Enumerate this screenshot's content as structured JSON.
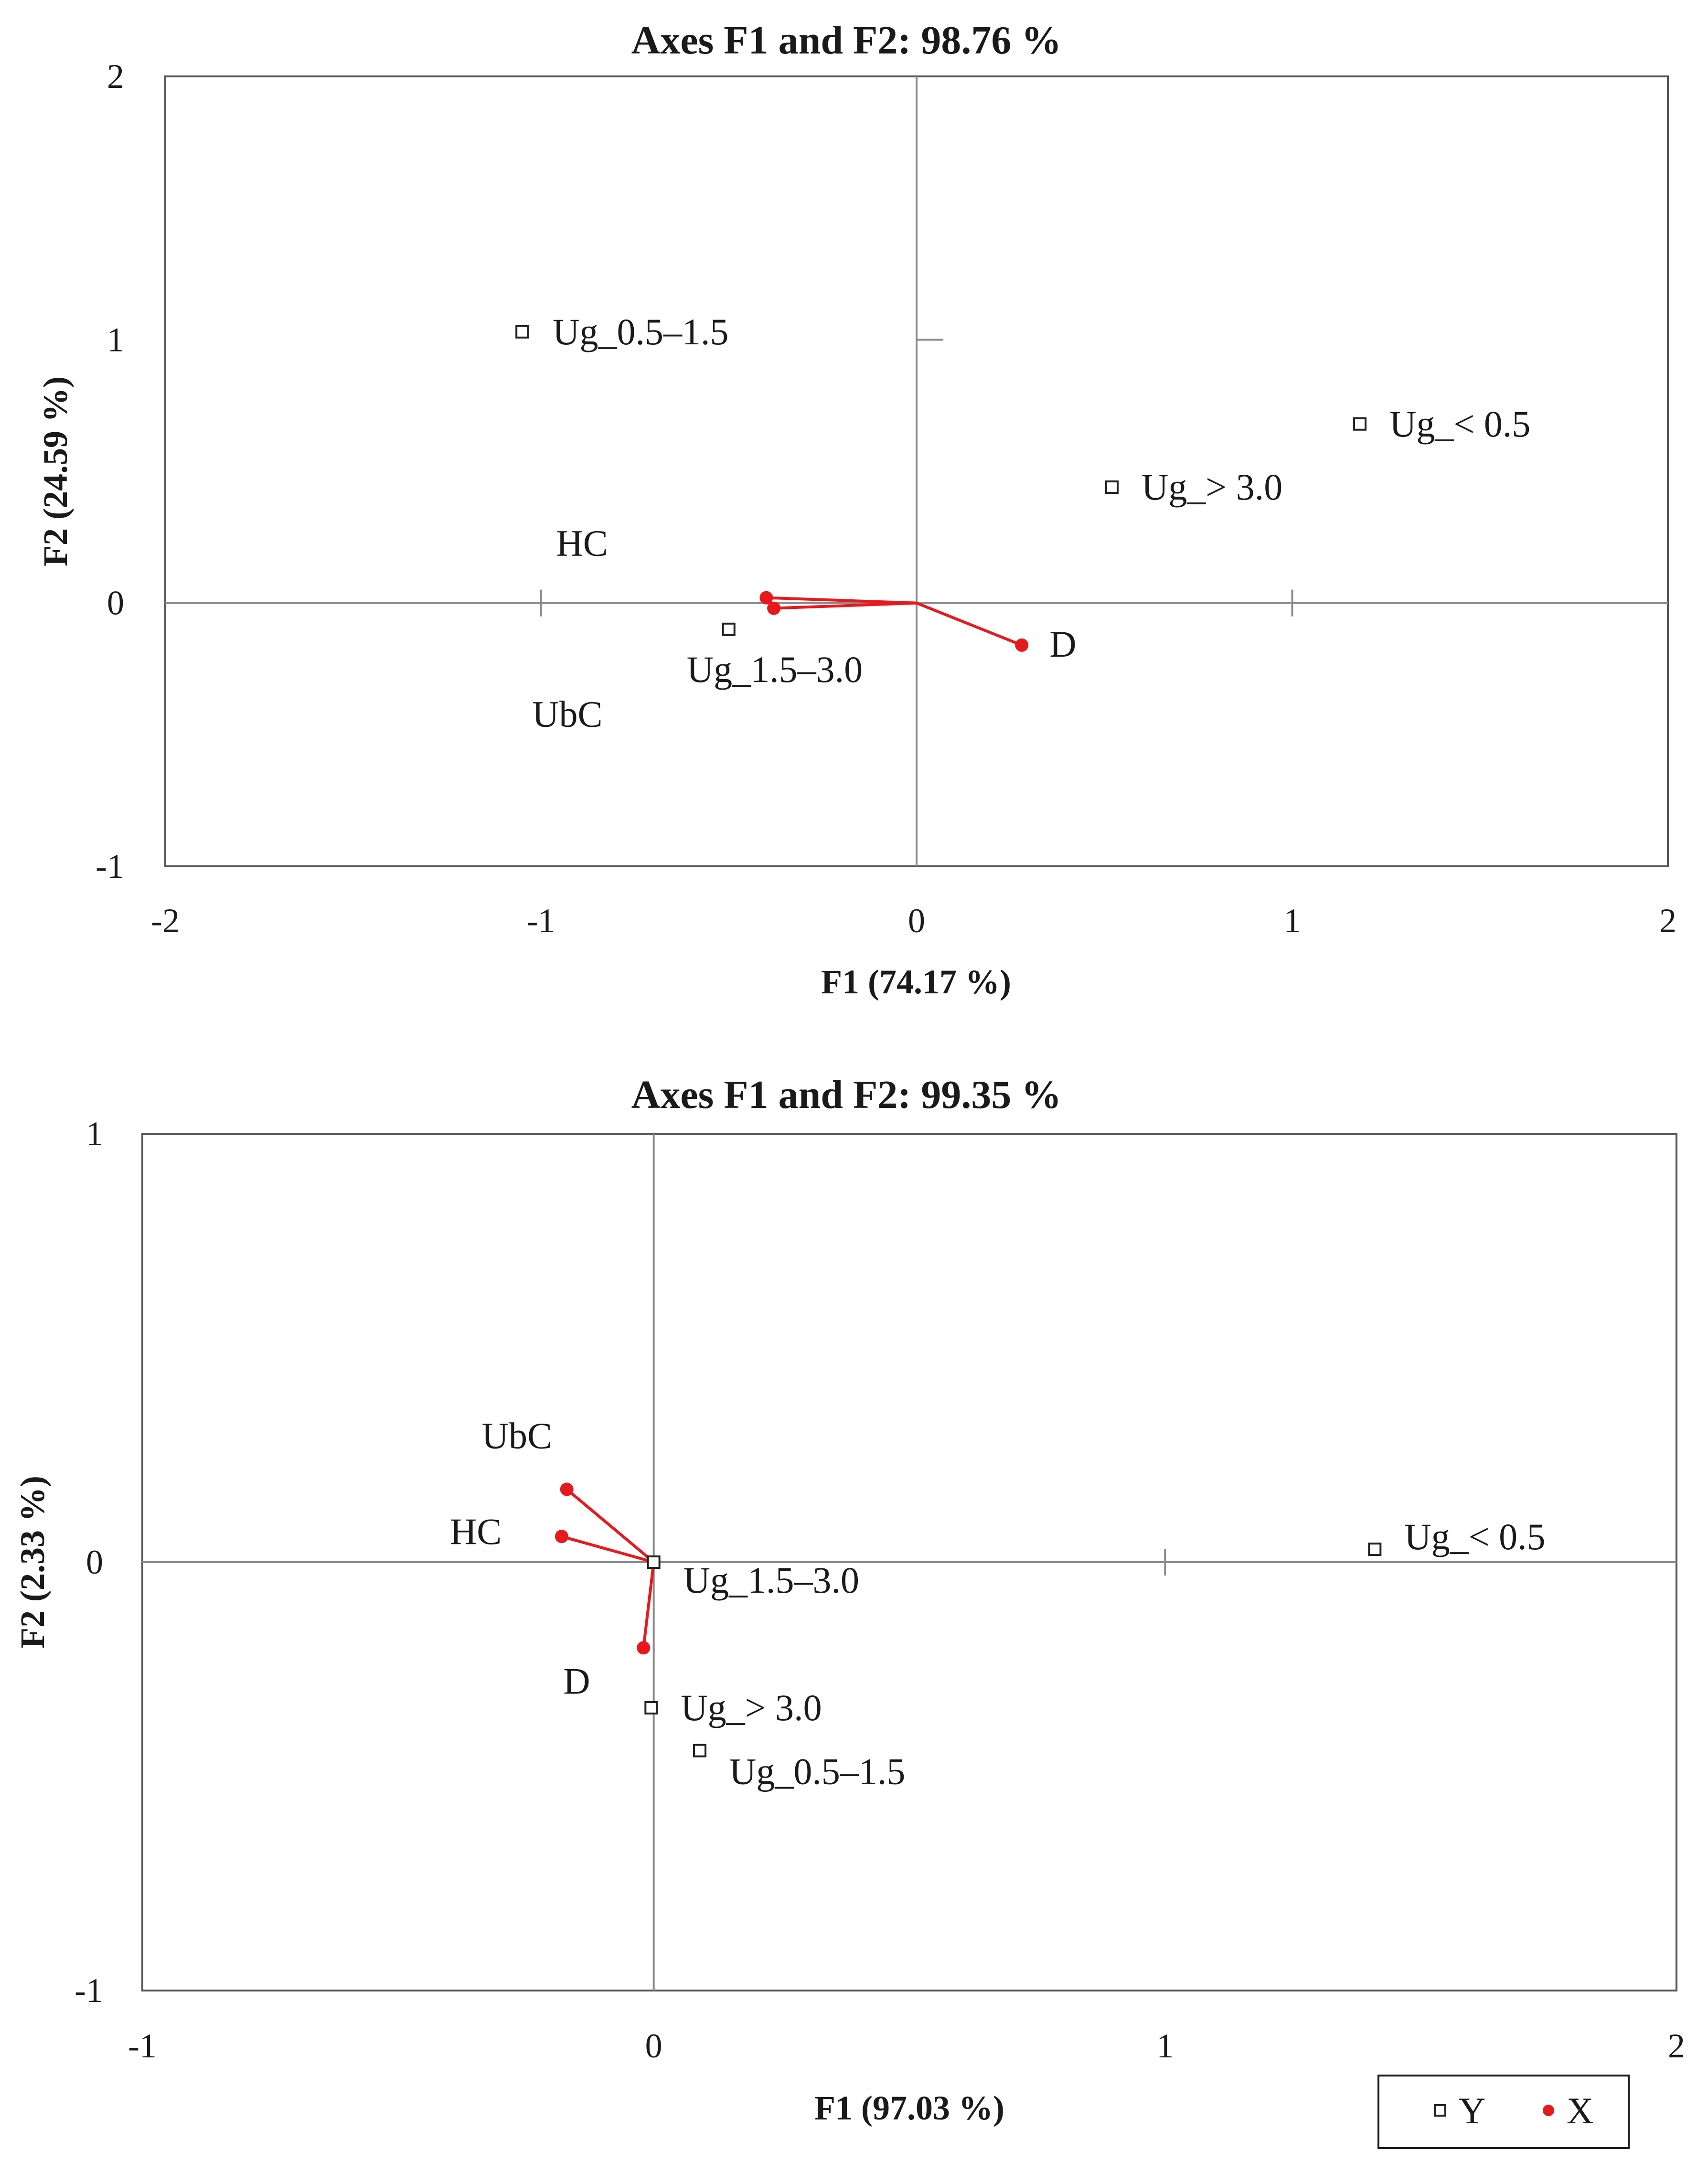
{
  "chart_data": [
    {
      "type": "scatter",
      "title": "Axes F1 and F2: 98.76 %",
      "xlabel": "F1 (74.17 %)",
      "ylabel": "F2 (24.59 %)",
      "xlim": [
        -2,
        2
      ],
      "ylim": [
        -1,
        2
      ],
      "xticks": [
        "-2",
        "-1",
        "0",
        "1",
        "2"
      ],
      "yticks": [
        "-1",
        "0",
        "1",
        "2"
      ],
      "grid": false,
      "series": [
        {
          "name": "Y",
          "marker": "open-square",
          "color": "#222222",
          "points": [
            {
              "label": "Ug_0.5–1.5",
              "x": -1.05,
              "y": 1.03
            },
            {
              "label": "Ug_< 0.5",
              "x": 1.18,
              "y": 0.68
            },
            {
              "label": "Ug_> 3.0",
              "x": 0.52,
              "y": 0.44
            },
            {
              "label": "Ug_1.5–3.0",
              "x": -0.5,
              "y": -0.1
            }
          ]
        },
        {
          "name": "X",
          "marker": "filled-circle-vector",
          "color": "#e8191d",
          "points": [
            {
              "label": "HC",
              "x": -0.4,
              "y": 0.02
            },
            {
              "label": "UbC",
              "x": -0.38,
              "y": -0.02
            },
            {
              "label": "D",
              "x": 0.28,
              "y": -0.16
            }
          ]
        }
      ]
    },
    {
      "type": "scatter",
      "title": "Axes F1 and F2: 99.35 %",
      "xlabel": "F1 (97.03 %)",
      "ylabel": "F2 (2.33 %)",
      "xlim": [
        -1,
        2
      ],
      "ylim": [
        -1,
        1
      ],
      "xticks": [
        "-1",
        "0",
        "1",
        "2"
      ],
      "yticks": [
        "-1",
        "0",
        "1"
      ],
      "grid": false,
      "legend_position": "bottom-right",
      "series": [
        {
          "name": "Y",
          "marker": "open-square",
          "color": "#222222",
          "points": [
            {
              "label": "Ug_< 0.5",
              "x": 1.41,
              "y": 0.03
            },
            {
              "label": "Ug_1.5–3.0",
              "x": 0.0,
              "y": 0.0
            },
            {
              "label": "Ug_> 3.0",
              "x": -0.005,
              "y": -0.34
            },
            {
              "label": "Ug_0.5–1.5",
              "x": 0.09,
              "y": -0.44
            }
          ]
        },
        {
          "name": "X",
          "marker": "filled-circle-vector",
          "color": "#e8191d",
          "points": [
            {
              "label": "UbC",
              "x": -0.17,
              "y": 0.17
            },
            {
              "label": "HC",
              "x": -0.18,
              "y": 0.06
            },
            {
              "label": "D",
              "x": -0.02,
              "y": -0.2
            }
          ]
        }
      ]
    }
  ],
  "legend": {
    "y_label": "Y",
    "x_label": "X"
  }
}
